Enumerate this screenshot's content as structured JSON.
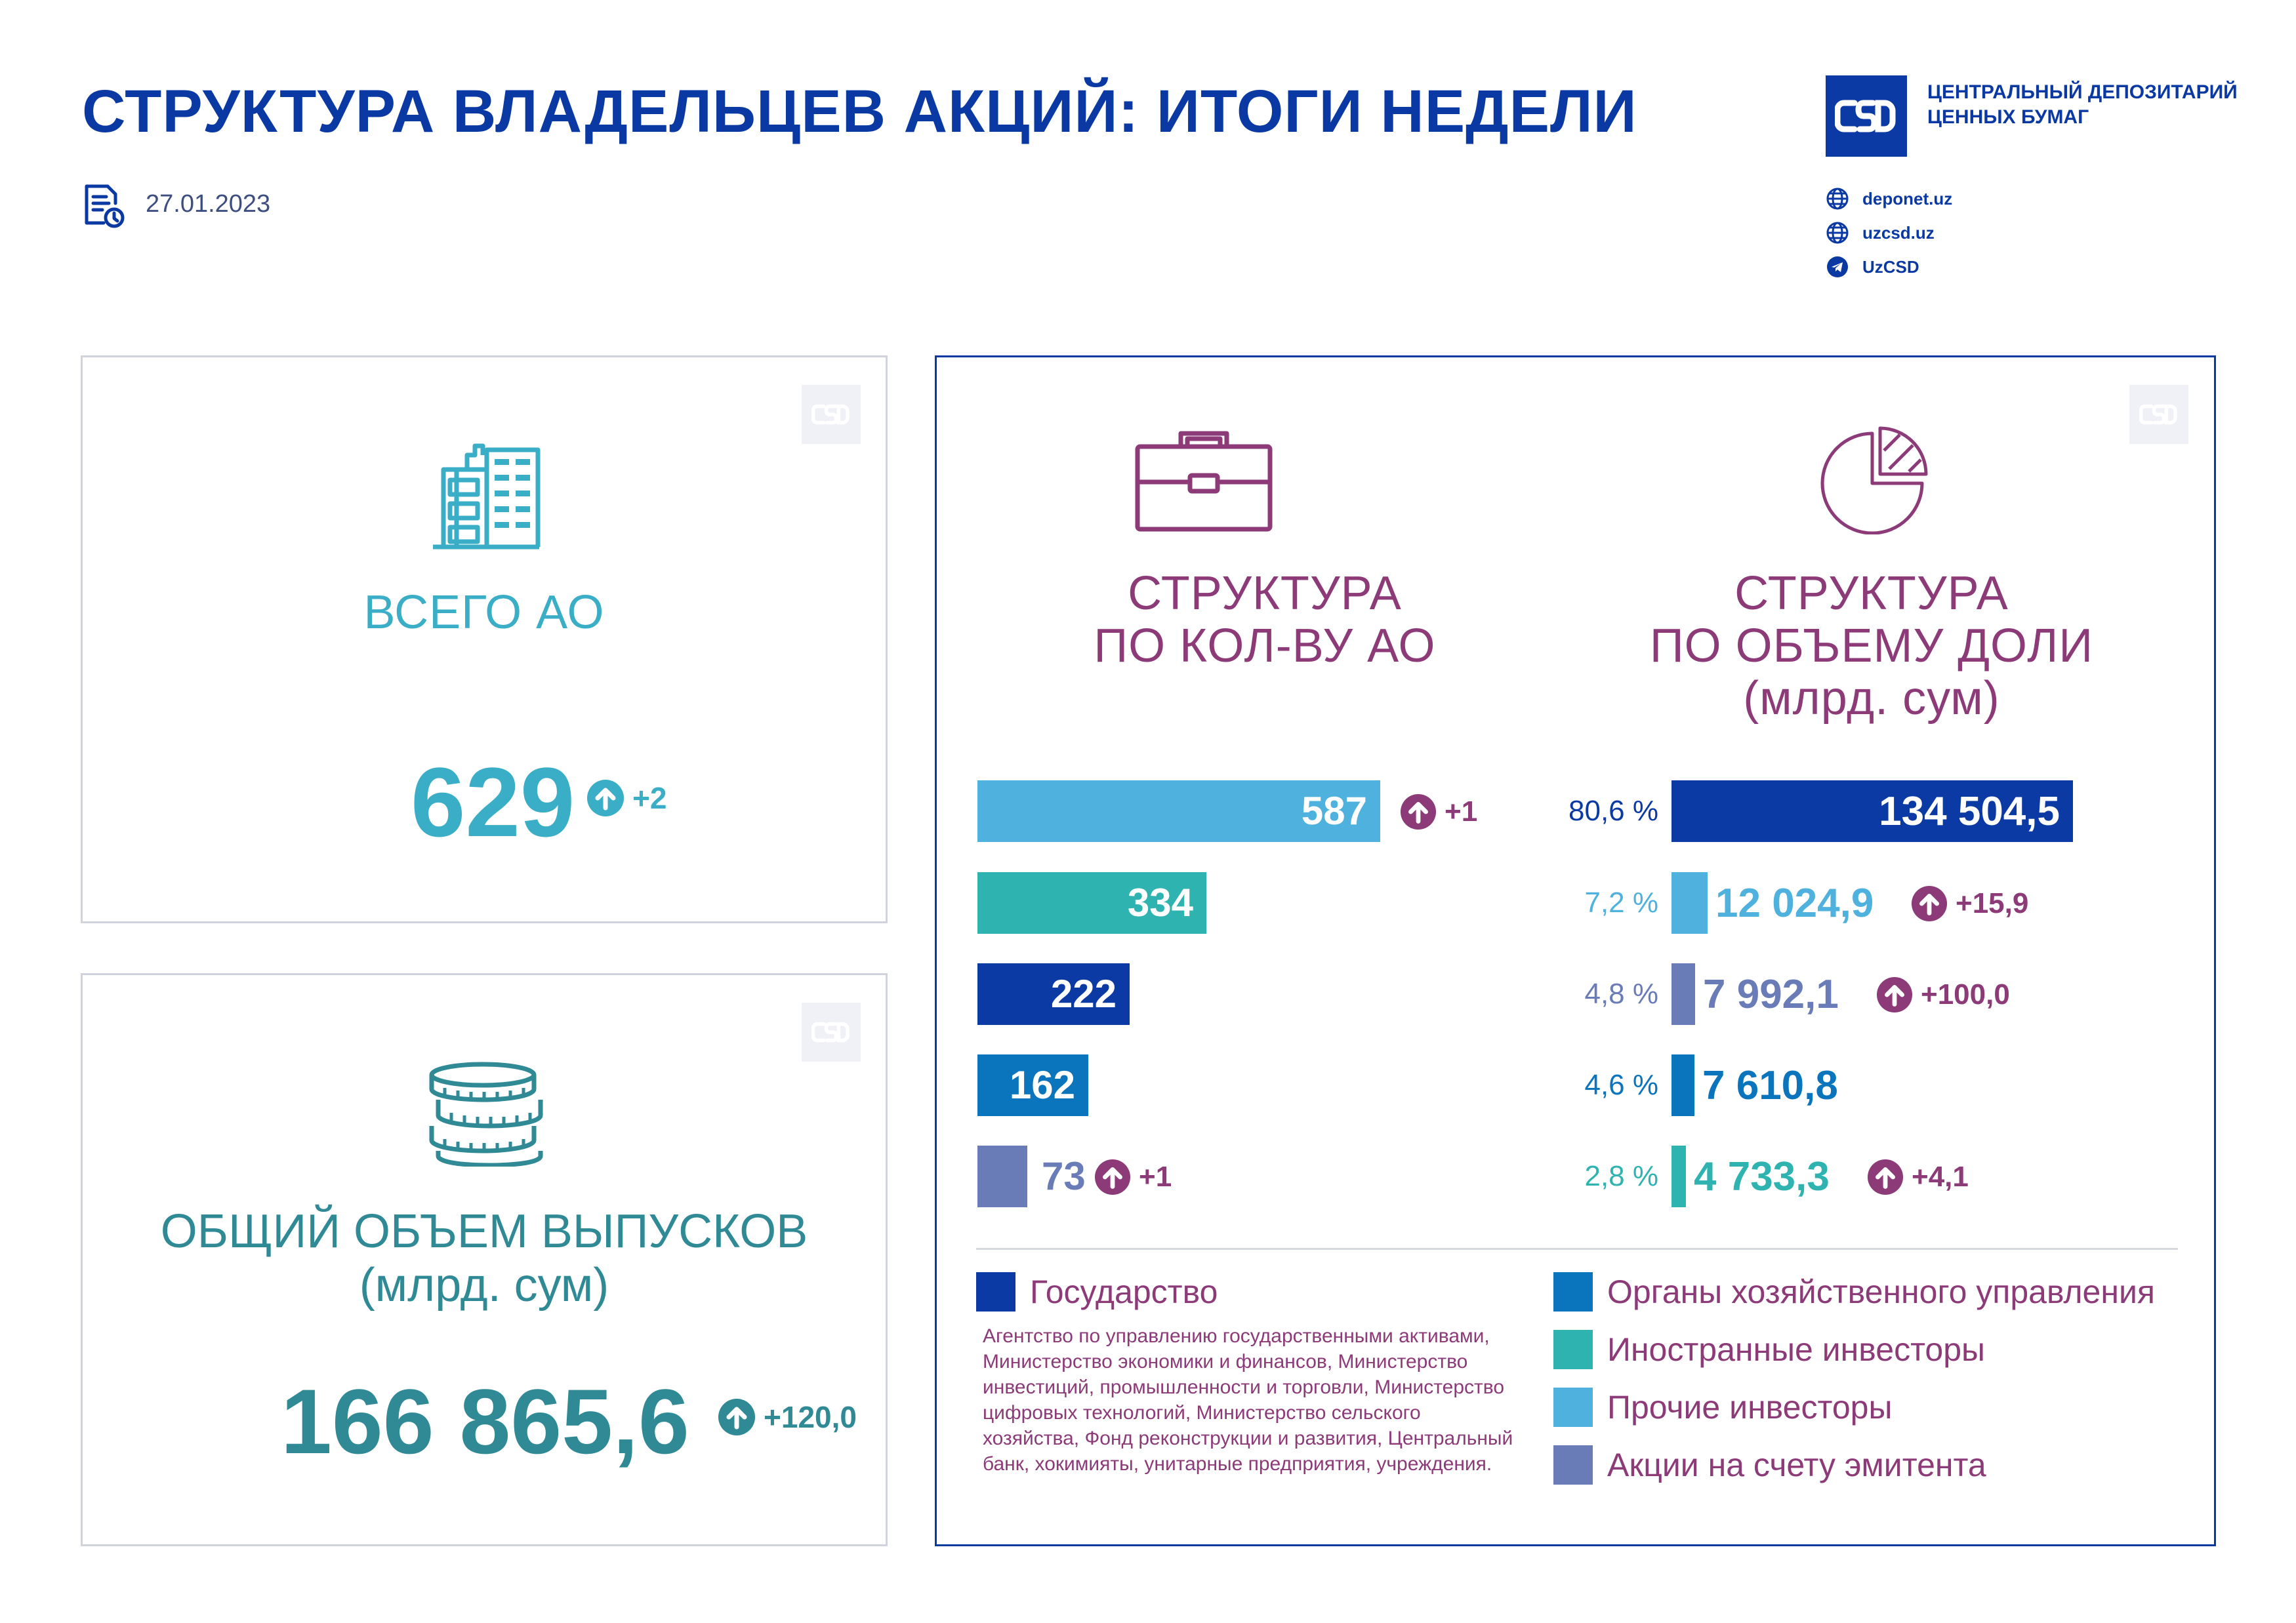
{
  "header": {
    "title": "СТРУКТУРА ВЛАДЕЛЬЦЕВ АКЦИЙ: ИТОГИ НЕДЕЛИ",
    "date": "27.01.2023"
  },
  "brand": {
    "name_line1": "ЦЕНТРАЛЬНЫЙ ДЕПОЗИТАРИЙ",
    "name_line2": "ЦЕННЫХ БУМАГ",
    "links": [
      {
        "icon": "globe-icon",
        "text": "deponet.uz"
      },
      {
        "icon": "globe-icon",
        "text": "uzcsd.uz"
      },
      {
        "icon": "telegram-icon",
        "text": "UzCSD"
      }
    ]
  },
  "total_jsc": {
    "label": "ВСЕГО АО",
    "value": "629",
    "delta": "+2"
  },
  "total_issue": {
    "label_line1": "ОБЩИЙ ОБЪЕМ ВЫПУСКОВ",
    "label_line2": "(млрд. сум)",
    "value": "166 865,6",
    "delta": "+120,0"
  },
  "colors": {
    "state": "#0b3aa4",
    "mgmt_bodies": "#0a74bd",
    "foreign": "#2fb3b1",
    "other": "#4fb1dd",
    "issuer": "#6a7cb8",
    "purple": "#8c3a78",
    "teal": "#3aaec6"
  },
  "chart_data": [
    {
      "type": "bar",
      "title_line1": "СТРУКТУРА",
      "title_line2": "ПО КОЛ-ВУ АО",
      "categories": [
        "Прочие инвесторы",
        "Иностранные инвесторы",
        "Государство",
        "Органы хозяйственного управления",
        "Акции на счету эмитента"
      ],
      "values": [
        587,
        334,
        222,
        162,
        73
      ],
      "labels": [
        "587",
        "334",
        "222",
        "162",
        "73"
      ],
      "deltas": [
        "+1",
        "",
        "",
        "",
        "+1"
      ],
      "color_keys": [
        "other",
        "foreign",
        "state",
        "mgmt_bodies",
        "issuer"
      ]
    },
    {
      "type": "bar",
      "title_line1": "СТРУКТУРА",
      "title_line2": "ПО ОБЪЕМУ ДОЛИ",
      "title_line3": "(млрд. сум)",
      "categories": [
        "Государство",
        "Прочие инвесторы",
        "Акции на счету эмитента",
        "Органы хозяйственного управления",
        "Иностранные инвесторы"
      ],
      "values": [
        134504.5,
        12024.9,
        7992.1,
        7610.8,
        4733.3
      ],
      "labels": [
        "134 504,5",
        "12 024,9",
        "7 992,1",
        "7 610,8",
        "4 733,3"
      ],
      "percents": [
        "80,6 %",
        "7,2 %",
        "4,8 %",
        "4,6 %",
        "2,8 %"
      ],
      "deltas": [
        "",
        "+15,9",
        "+100,0",
        "",
        "+4,1"
      ],
      "color_keys": [
        "state",
        "other",
        "issuer",
        "mgmt_bodies",
        "foreign"
      ]
    }
  ],
  "legend": {
    "state_label": "Государство",
    "state_note": "Агентство по управлению государственными активами, Министерство экономики и финансов, Министерство инвестиций, промышленности и торговли, Министерство цифровых технологий, Министерство сельского хозяйства, Фонд реконструкции и развития, Центральный банк, хокимияты, унитарные предприятия, учреждения.",
    "items": [
      {
        "label": "Органы хозяйственного управления",
        "color_key": "mgmt_bodies"
      },
      {
        "label": "Иностранные инвесторы",
        "color_key": "foreign"
      },
      {
        "label": "Прочие инвесторы",
        "color_key": "other"
      },
      {
        "label": "Акции на счету эмитента",
        "color_key": "issuer"
      }
    ]
  }
}
